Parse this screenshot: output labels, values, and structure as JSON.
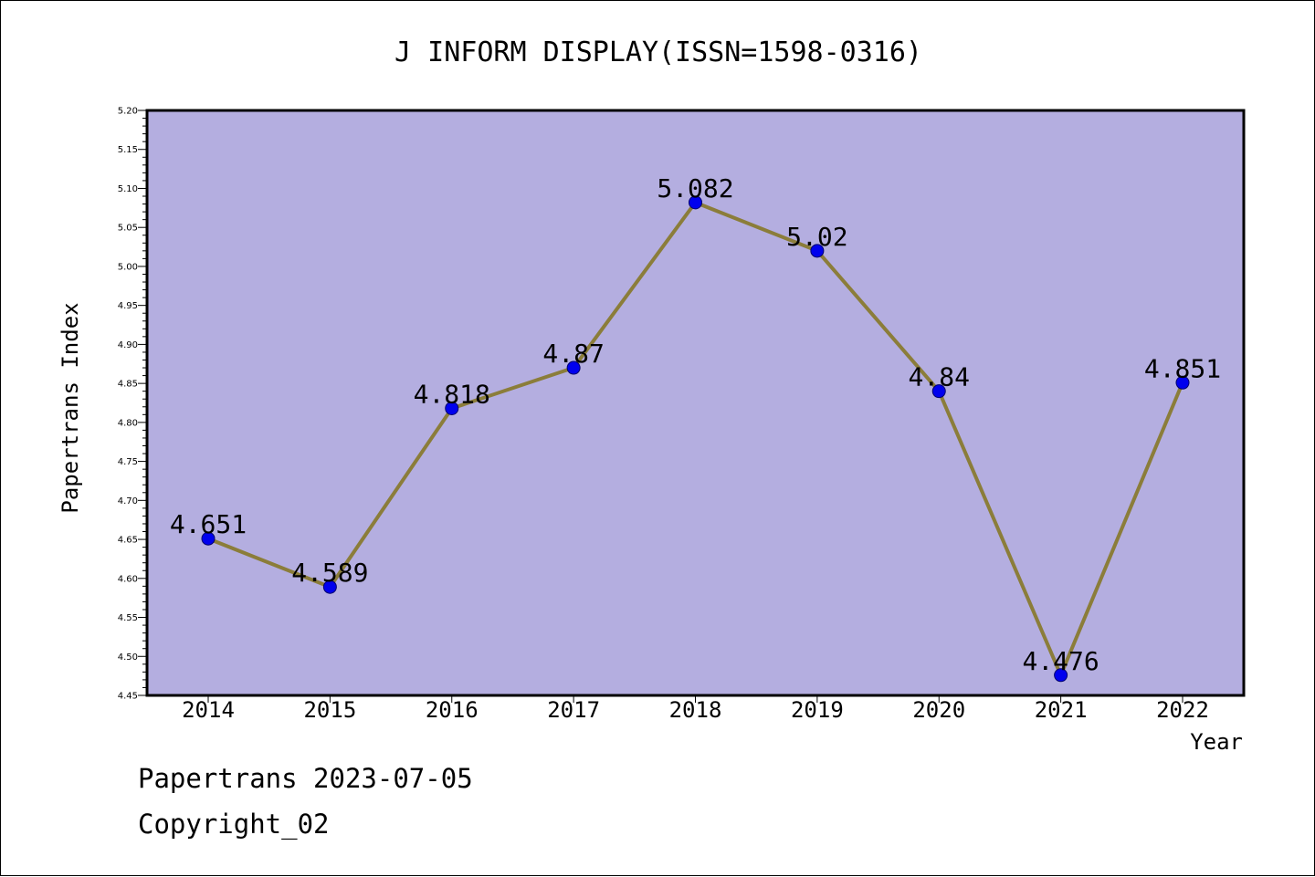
{
  "chart_data": {
    "type": "line",
    "title": "J INFORM DISPLAY(ISSN=1598-0316)",
    "xlabel": "Year",
    "ylabel": "Papertrans Index",
    "categories": [
      "2014",
      "2015",
      "2016",
      "2017",
      "2018",
      "2019",
      "2020",
      "2021",
      "2022"
    ],
    "values": [
      4.651,
      4.589,
      4.818,
      4.87,
      5.082,
      5.02,
      4.84,
      4.476,
      4.851
    ],
    "data_labels": [
      "4.651",
      "4.589",
      "4.818",
      "4.87",
      "5.082",
      "5.02",
      "4.84",
      "4.476",
      "4.851"
    ],
    "ylim": [
      4.45,
      5.2
    ],
    "yticks": [
      "4.45",
      "4.50",
      "4.55",
      "4.60",
      "4.65",
      "4.70",
      "4.75",
      "4.80",
      "4.85",
      "4.90",
      "4.95",
      "5.00",
      "5.05",
      "5.10",
      "5.15",
      "5.20"
    ],
    "grid": false,
    "legend": "none",
    "colors": {
      "plot_background": "#b4aee0",
      "line": "#8b7d3a",
      "marker": "#0000ee",
      "marker_edge": "#00006e"
    }
  },
  "footer": {
    "source": "Papertrans 2023-07-05",
    "copyright": "Copyright_02"
  }
}
